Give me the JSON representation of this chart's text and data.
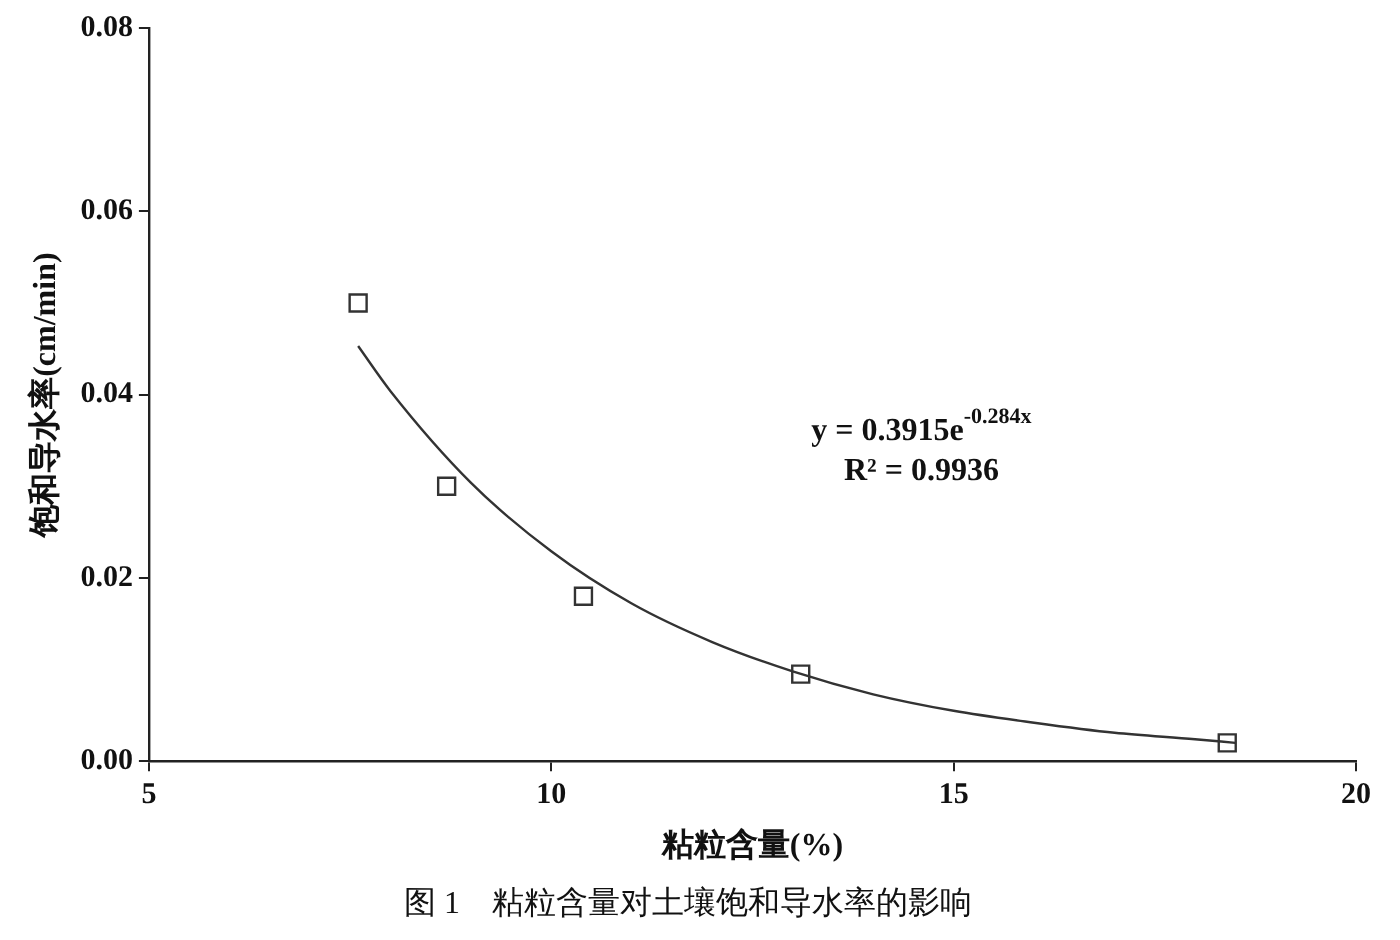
{
  "chart_data": {
    "type": "scatter",
    "title": "图 1　粘粒含量对土壤饱和导水率的影响",
    "xlabel": "粘粒含量(%)",
    "ylabel": "饱和导水率(cm/min)",
    "xlim": [
      5,
      20
    ],
    "xticks": [
      5,
      10,
      15,
      20
    ],
    "ylim": [
      0,
      0.08
    ],
    "yticks": [
      {
        "value": 0,
        "label": "0.00"
      },
      {
        "value": 0.02,
        "label": "0.02"
      },
      {
        "value": 0.04,
        "label": "0.04"
      },
      {
        "value": 0.06,
        "label": "0.06"
      },
      {
        "value": 0.08,
        "label": "0.08"
      }
    ],
    "grid": false,
    "legend": false,
    "series": [
      {
        "marker": "square",
        "color": "#333333",
        "x": [
          7.6,
          8.7,
          10.4,
          13.1,
          18.4
        ],
        "values": [
          0.05,
          0.03,
          0.018,
          0.0095,
          0.002
        ]
      },
      {
        "type": "line",
        "marker": "none",
        "color": "#333333",
        "x": [
          7.6,
          8,
          9,
          10,
          11,
          12,
          13,
          14,
          15,
          16,
          17,
          18,
          18.5
        ],
        "values": [
          0.0453,
          0.0404,
          0.0304,
          0.0229,
          0.0172,
          0.013,
          0.0098,
          0.0073,
          0.0055,
          0.0042,
          0.0031,
          0.0024,
          0.002
        ]
      }
    ],
    "annotations": [
      "y = 0.3915e$^{-0.284x}$",
      "R² = 0.9936"
    ]
  }
}
